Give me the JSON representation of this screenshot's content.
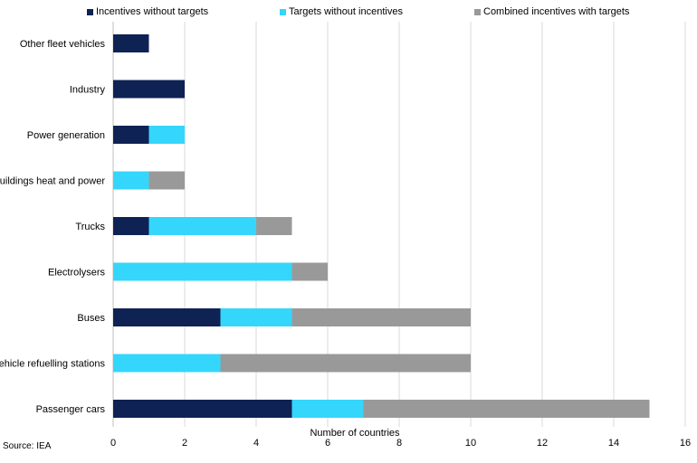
{
  "chart_data": {
    "type": "bar",
    "orientation": "horizontal",
    "stacked": true,
    "categories": [
      "Other fleet vehicles",
      "Industry",
      "Power generation",
      "Buildings heat and power",
      "Trucks",
      "Electrolysers",
      "Buses",
      "Vehicle refuelling stations",
      "Passenger cars"
    ],
    "series": [
      {
        "name": "Incentives without targets",
        "color": "#0e2254",
        "values": [
          1,
          2,
          1,
          0,
          1,
          0,
          3,
          0,
          5
        ]
      },
      {
        "name": "Targets without incentives",
        "color": "#35d6fb",
        "values": [
          0,
          0,
          1,
          1,
          3,
          5,
          2,
          3,
          2
        ]
      },
      {
        "name": "Combined incentives with targets",
        "color": "#999999",
        "values": [
          0,
          0,
          0,
          1,
          1,
          1,
          5,
          7,
          8
        ]
      }
    ],
    "xlabel": "Number of countries",
    "ylabel": "",
    "xlim": [
      0,
      16
    ],
    "xticks": [
      "0",
      "2",
      "4",
      "6",
      "8",
      "10",
      "12",
      "14",
      "16"
    ],
    "grid": true,
    "legend_position": "top"
  },
  "source": "Source: IEA"
}
